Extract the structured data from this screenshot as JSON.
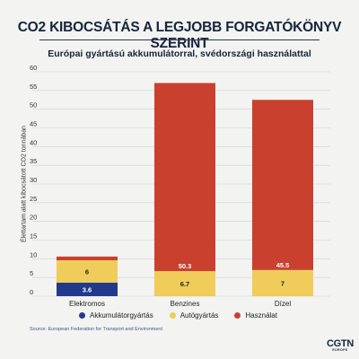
{
  "title": "CO2 KIBOCSÁTÁS A LEGJOBB FORGATÓKÖNYV SZERINT",
  "subtitle": "Európai gyártású akkumulátorral, svédországi használattal",
  "source": "Source: European Federation for Transport and Environment",
  "logo": {
    "main": "CGTN",
    "sub": "EUROPE"
  },
  "colors": {
    "background": "#f3f3f1",
    "battery": "#213a8c",
    "car": "#f0cc5a",
    "use": "#c9402e",
    "grid": "#d0d0d0",
    "title": "#16243c"
  },
  "chart_data": {
    "type": "bar",
    "stacked": true,
    "title": "CO2 KIBOCSÁTÁS A LEGJOBB FORGATÓKÖNYV SZERINT",
    "subtitle": "Európai gyártású akkumulátorral, svédországi használattal",
    "xlabel": "",
    "ylabel": "Élettartam alatt kibocsátott CO2 tonnában",
    "ylim": [
      0,
      60
    ],
    "yticks": [
      0,
      5,
      10,
      15,
      20,
      25,
      30,
      35,
      40,
      45,
      50,
      55,
      60
    ],
    "grid": true,
    "legend_position": "bottom",
    "categories": [
      "Elektromos",
      "Benzines",
      "Dízel"
    ],
    "series": [
      {
        "name": "Akkumulátorgyártás",
        "color": "#213a8c",
        "values": [
          3.6,
          0,
          0
        ],
        "labels": [
          "3.6",
          "",
          ""
        ]
      },
      {
        "name": "Autógyártás",
        "color": "#f0cc5a",
        "values": [
          6,
          6.7,
          7
        ],
        "labels": [
          "6",
          "6.7",
          "7"
        ]
      },
      {
        "name": "Használat",
        "color": "#c9402e",
        "values": [
          1,
          50.3,
          45.5
        ],
        "labels": [
          "",
          "50.3",
          "45.5"
        ]
      }
    ]
  }
}
